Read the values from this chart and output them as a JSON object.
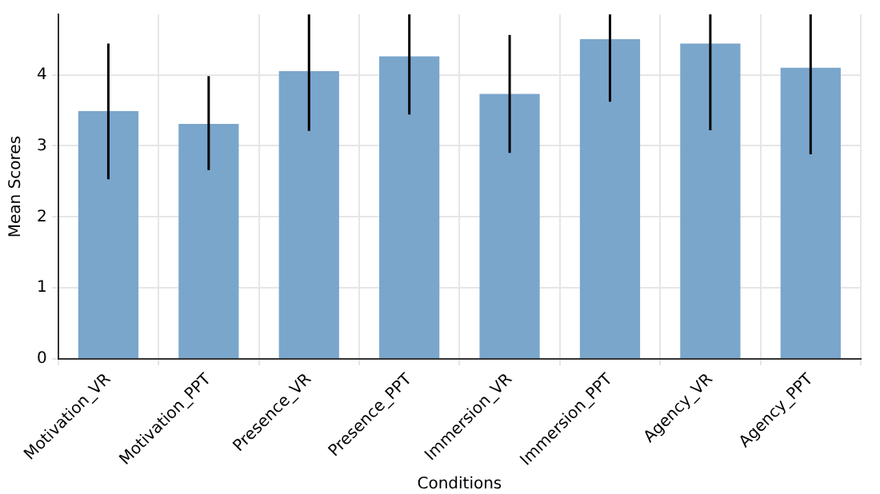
{
  "chart_data": {
    "type": "bar",
    "xlabel": "Conditions",
    "ylabel": "Mean Scores",
    "categories": [
      "Motivation_VR",
      "Motivation_PPT",
      "Presence_VR",
      "Presence_PPT",
      "Immersion_VR",
      "Immersion_PPT",
      "Agency_VR",
      "Agency_PPT"
    ],
    "values": [
      3.49,
      3.31,
      4.05,
      4.26,
      3.73,
      4.5,
      4.44,
      4.1
    ],
    "errors": [
      [
        2.53,
        4.44
      ],
      [
        2.66,
        3.98
      ],
      [
        3.21,
        4.85
      ],
      [
        3.44,
        4.85
      ],
      [
        2.9,
        4.56
      ],
      [
        3.62,
        4.85
      ],
      [
        3.22,
        4.85
      ],
      [
        2.88,
        4.85
      ]
    ],
    "color": "#7aa6cc",
    "ylim": [
      0,
      4.85
    ],
    "yticks": [
      0,
      1,
      2,
      3,
      4
    ],
    "grid": true
  }
}
